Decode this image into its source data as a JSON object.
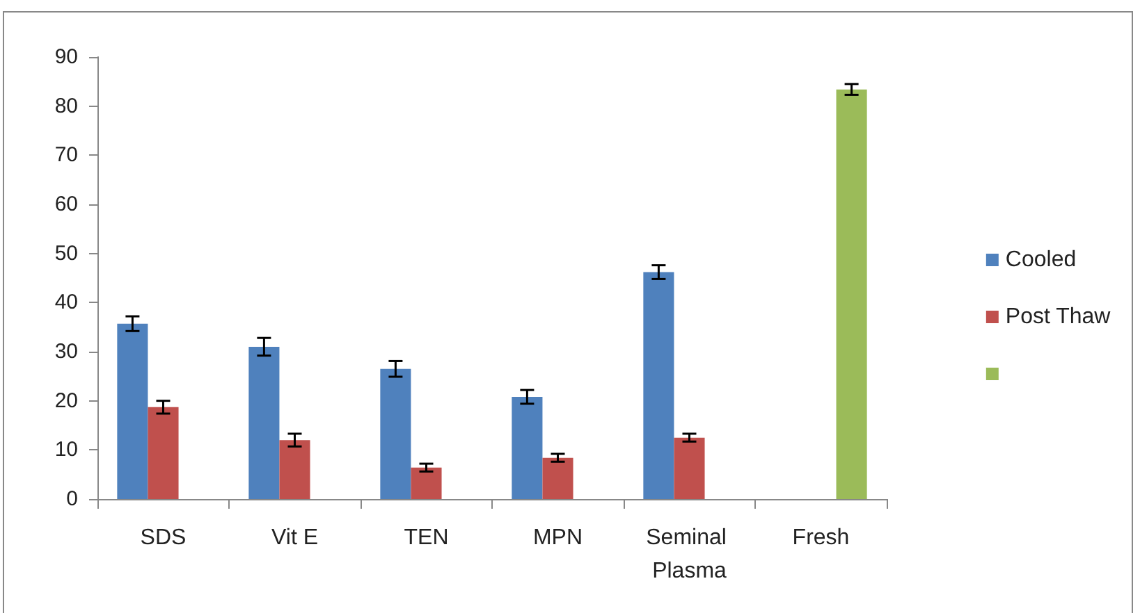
{
  "chart_data": {
    "type": "bar",
    "categories": [
      "SDS",
      "Vit E",
      "TEN",
      "MPN",
      "Seminal Plasma",
      "Fresh"
    ],
    "series": [
      {
        "name": "Cooled",
        "color": "#4f81bd",
        "values": [
          35.7,
          31,
          26.5,
          20.8,
          46.2,
          null
        ],
        "errors": [
          1.5,
          1.8,
          1.6,
          1.4,
          1.4,
          null
        ]
      },
      {
        "name": "Post Thaw",
        "color": "#c0504d",
        "values": [
          18.7,
          12,
          6.4,
          8.4,
          12.5,
          null
        ],
        "errors": [
          1.3,
          1.3,
          0.8,
          0.8,
          0.8,
          null
        ]
      },
      {
        "color": "#9bbb59",
        "values": [
          null,
          null,
          null,
          null,
          null,
          83.4
        ],
        "errors": [
          null,
          null,
          null,
          null,
          null,
          1.1
        ]
      }
    ],
    "ylim": [
      0,
      90
    ],
    "yticks": [
      0,
      10,
      20,
      30,
      40,
      50,
      60,
      70,
      80,
      90
    ],
    "grid": false,
    "legend": "right"
  }
}
